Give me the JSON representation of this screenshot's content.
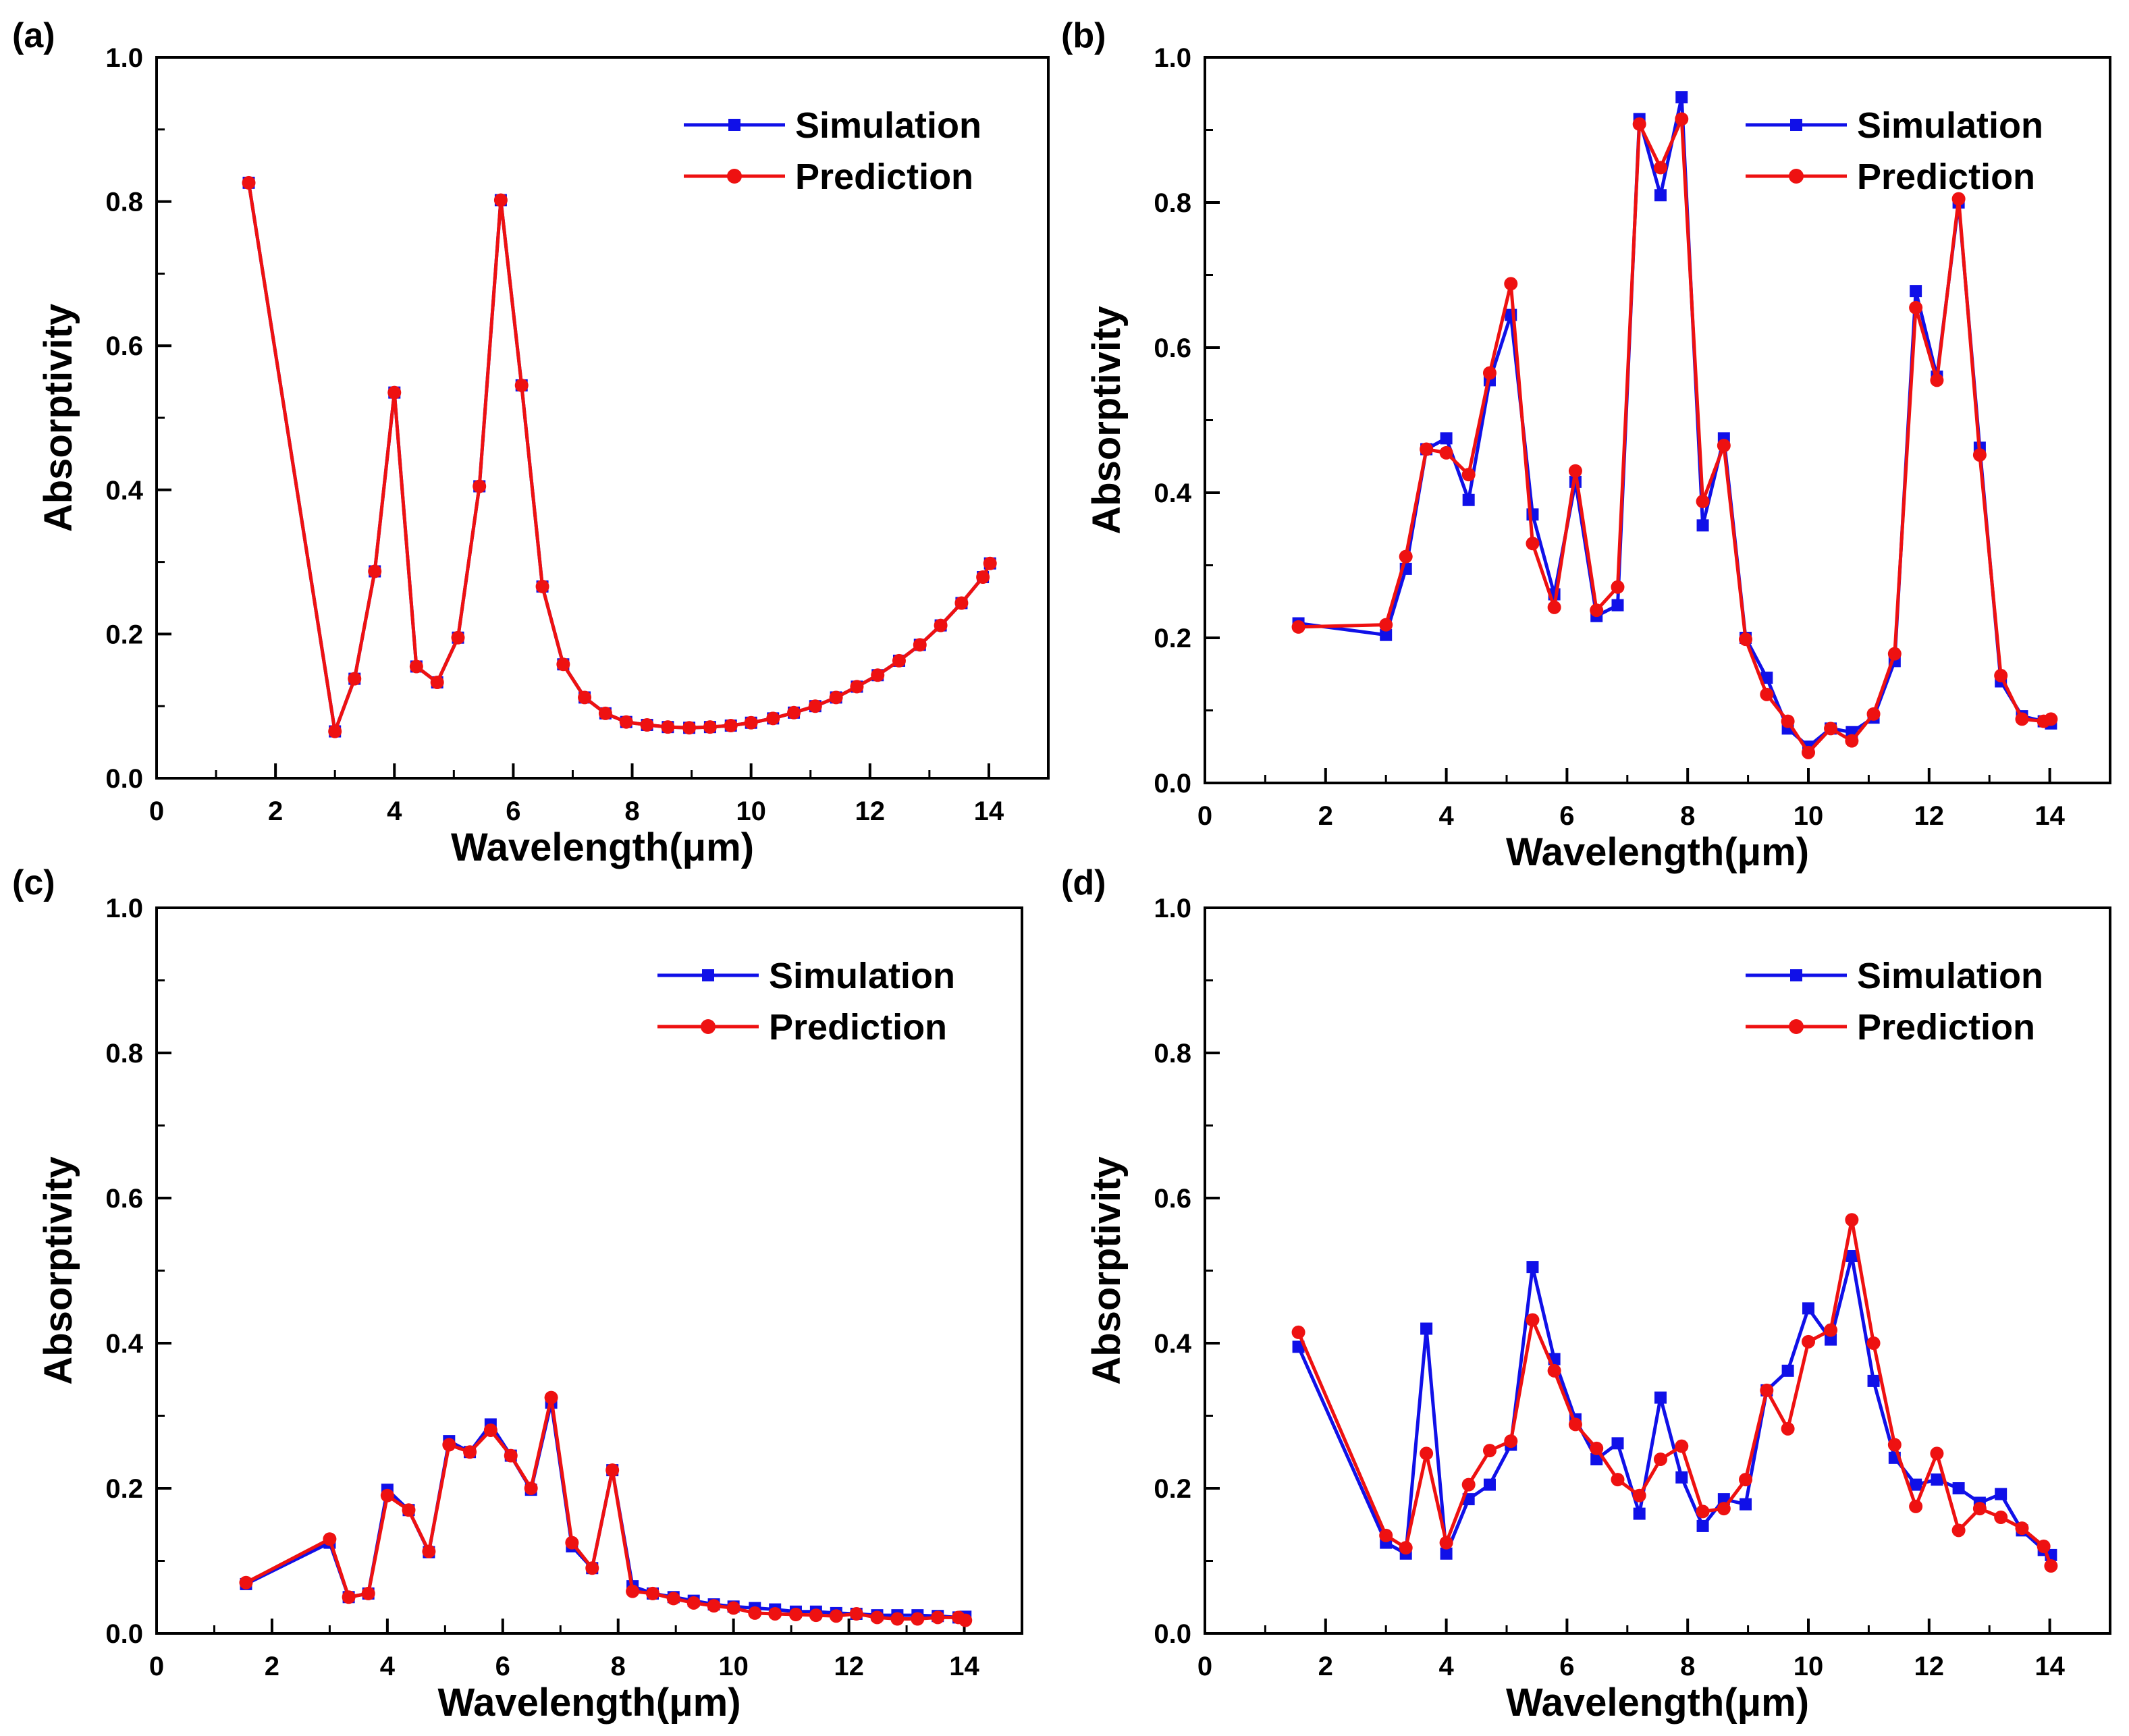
{
  "colors": {
    "simulation": "#1010e8",
    "prediction": "#ee1111",
    "axis": "#000000"
  },
  "chart_data": [
    {
      "panel": "(a)",
      "type": "line",
      "xlabel": "Wavelength(μm)",
      "ylabel": "Absorptivity",
      "xlim": [
        0,
        15
      ],
      "ylim": [
        0,
        1.0
      ],
      "xticks": [
        "0",
        "2",
        "4",
        "6",
        "8",
        "10",
        "12",
        "14"
      ],
      "yticks": [
        "0.0",
        "0.2",
        "0.4",
        "0.6",
        "0.8",
        "1.0"
      ],
      "legend": "top-right",
      "x": [
        1.55,
        3.0,
        3.33,
        3.67,
        4.0,
        4.37,
        4.72,
        5.07,
        5.43,
        5.79,
        6.14,
        6.49,
        6.84,
        7.2,
        7.55,
        7.9,
        8.25,
        8.6,
        8.96,
        9.31,
        9.66,
        10.0,
        10.37,
        10.72,
        11.08,
        11.43,
        11.78,
        12.13,
        12.49,
        12.84,
        13.19,
        13.54,
        13.9,
        14.02
      ],
      "series": [
        {
          "name": "Simulation",
          "marker": "square",
          "values": [
            0.826,
            0.065,
            0.138,
            0.287,
            0.535,
            0.155,
            0.133,
            0.195,
            0.405,
            0.802,
            0.545,
            0.266,
            0.158,
            0.112,
            0.09,
            0.078,
            0.074,
            0.071,
            0.07,
            0.071,
            0.073,
            0.077,
            0.083,
            0.091,
            0.1,
            0.112,
            0.127,
            0.143,
            0.163,
            0.185,
            0.212,
            0.243,
            0.279,
            0.298
          ]
        },
        {
          "name": "Prediction",
          "marker": "circle",
          "values": [
            0.826,
            0.065,
            0.138,
            0.287,
            0.535,
            0.155,
            0.133,
            0.195,
            0.405,
            0.802,
            0.545,
            0.266,
            0.158,
            0.112,
            0.09,
            0.078,
            0.074,
            0.071,
            0.07,
            0.071,
            0.073,
            0.077,
            0.083,
            0.091,
            0.1,
            0.112,
            0.127,
            0.143,
            0.163,
            0.185,
            0.212,
            0.243,
            0.279,
            0.298
          ]
        }
      ]
    },
    {
      "panel": "(b)",
      "type": "line",
      "xlabel": "Wavelength(μm)",
      "ylabel": "Absorptivity",
      "xlim": [
        0,
        15
      ],
      "ylim": [
        0,
        1.0
      ],
      "xticks": [
        "0",
        "2",
        "4",
        "6",
        "8",
        "10",
        "12",
        "14"
      ],
      "yticks": [
        "0.0",
        "0.2",
        "0.4",
        "0.6",
        "0.8",
        "1.0"
      ],
      "legend": "top-right",
      "x": [
        1.55,
        3.0,
        3.33,
        3.67,
        4.0,
        4.37,
        4.72,
        5.07,
        5.43,
        5.79,
        6.14,
        6.49,
        6.84,
        7.2,
        7.55,
        7.9,
        8.25,
        8.6,
        8.96,
        9.31,
        9.66,
        10.0,
        10.37,
        10.72,
        11.08,
        11.43,
        11.78,
        12.13,
        12.49,
        12.84,
        13.19,
        13.54,
        13.9,
        14.02
      ],
      "series": [
        {
          "name": "Simulation",
          "marker": "square",
          "values": [
            0.22,
            0.204,
            0.295,
            0.46,
            0.475,
            0.39,
            0.555,
            0.645,
            0.37,
            0.26,
            0.415,
            0.23,
            0.245,
            0.915,
            0.81,
            0.945,
            0.355,
            0.475,
            0.2,
            0.145,
            0.075,
            0.05,
            0.075,
            0.07,
            0.09,
            0.168,
            0.678,
            0.56,
            0.8,
            0.462,
            0.14,
            0.092,
            0.085,
            0.082
          ]
        },
        {
          "name": "Prediction",
          "marker": "circle",
          "values": [
            0.215,
            0.218,
            0.312,
            0.46,
            0.455,
            0.425,
            0.565,
            0.688,
            0.33,
            0.242,
            0.43,
            0.238,
            0.27,
            0.908,
            0.848,
            0.915,
            0.388,
            0.465,
            0.198,
            0.122,
            0.085,
            0.042,
            0.075,
            0.058,
            0.095,
            0.178,
            0.655,
            0.555,
            0.805,
            0.452,
            0.148,
            0.088,
            0.085,
            0.088
          ]
        }
      ]
    },
    {
      "panel": "(c)",
      "type": "line",
      "xlabel": "Wavelength(μm)",
      "ylabel": "Absorptivity",
      "xlim": [
        0,
        15
      ],
      "ylim": [
        0,
        1.0
      ],
      "xticks": [
        "0",
        "2",
        "4",
        "6",
        "8",
        "10",
        "12",
        "14"
      ],
      "yticks": [
        "0.0",
        "0.2",
        "0.4",
        "0.6",
        "0.8",
        "1.0"
      ],
      "legend": "top-right",
      "x": [
        1.55,
        3.0,
        3.33,
        3.67,
        4.0,
        4.37,
        4.72,
        5.07,
        5.43,
        5.79,
        6.14,
        6.49,
        6.84,
        7.2,
        7.55,
        7.9,
        8.25,
        8.6,
        8.96,
        9.31,
        9.66,
        10.0,
        10.37,
        10.72,
        11.08,
        11.43,
        11.78,
        12.13,
        12.49,
        12.84,
        13.19,
        13.54,
        13.9,
        14.02
      ],
      "series": [
        {
          "name": "Simulation",
          "marker": "square",
          "values": [
            0.068,
            0.125,
            0.05,
            0.055,
            0.198,
            0.17,
            0.112,
            0.265,
            0.25,
            0.288,
            0.245,
            0.198,
            0.318,
            0.12,
            0.09,
            0.225,
            0.065,
            0.055,
            0.05,
            0.045,
            0.04,
            0.037,
            0.035,
            0.033,
            0.03,
            0.03,
            0.028,
            0.027,
            0.025,
            0.025,
            0.025,
            0.024,
            0.022,
            0.023
          ]
        },
        {
          "name": "Prediction",
          "marker": "circle",
          "values": [
            0.07,
            0.13,
            0.05,
            0.055,
            0.19,
            0.17,
            0.113,
            0.26,
            0.25,
            0.28,
            0.245,
            0.2,
            0.325,
            0.125,
            0.09,
            0.225,
            0.058,
            0.055,
            0.048,
            0.042,
            0.038,
            0.035,
            0.028,
            0.027,
            0.026,
            0.025,
            0.024,
            0.027,
            0.022,
            0.02,
            0.02,
            0.022,
            0.022,
            0.018
          ]
        }
      ]
    },
    {
      "panel": "(d)",
      "type": "line",
      "xlabel": "Wavelength(μm)",
      "ylabel": "Absorptivity",
      "xlim": [
        0,
        15
      ],
      "ylim": [
        0,
        1.0
      ],
      "xticks": [
        "0",
        "2",
        "4",
        "6",
        "8",
        "10",
        "12",
        "14"
      ],
      "yticks": [
        "0.0",
        "0.2",
        "0.4",
        "0.6",
        "0.8",
        "1.0"
      ],
      "legend": "top-right",
      "x": [
        1.55,
        3.0,
        3.33,
        3.67,
        4.0,
        4.37,
        4.72,
        5.07,
        5.43,
        5.79,
        6.14,
        6.49,
        6.84,
        7.2,
        7.55,
        7.9,
        8.25,
        8.6,
        8.96,
        9.31,
        9.66,
        10.0,
        10.37,
        10.72,
        11.08,
        11.43,
        11.78,
        12.13,
        12.49,
        12.84,
        13.19,
        13.54,
        13.9,
        14.02
      ],
      "series": [
        {
          "name": "Simulation",
          "marker": "square",
          "values": [
            0.395,
            0.125,
            0.11,
            0.42,
            0.11,
            0.185,
            0.205,
            0.26,
            0.505,
            0.378,
            0.295,
            0.24,
            0.262,
            0.165,
            0.325,
            0.215,
            0.148,
            0.185,
            0.178,
            0.335,
            0.362,
            0.448,
            0.405,
            0.52,
            0.348,
            0.242,
            0.205,
            0.212,
            0.2,
            0.18,
            0.192,
            0.142,
            0.115,
            0.108
          ]
        },
        {
          "name": "Prediction",
          "marker": "circle",
          "values": [
            0.415,
            0.135,
            0.118,
            0.248,
            0.125,
            0.205,
            0.252,
            0.265,
            0.432,
            0.362,
            0.288,
            0.255,
            0.212,
            0.19,
            0.24,
            0.258,
            0.168,
            0.172,
            0.212,
            0.335,
            0.282,
            0.402,
            0.418,
            0.57,
            0.4,
            0.26,
            0.175,
            0.248,
            0.142,
            0.172,
            0.16,
            0.145,
            0.12,
            0.093
          ]
        }
      ]
    }
  ]
}
